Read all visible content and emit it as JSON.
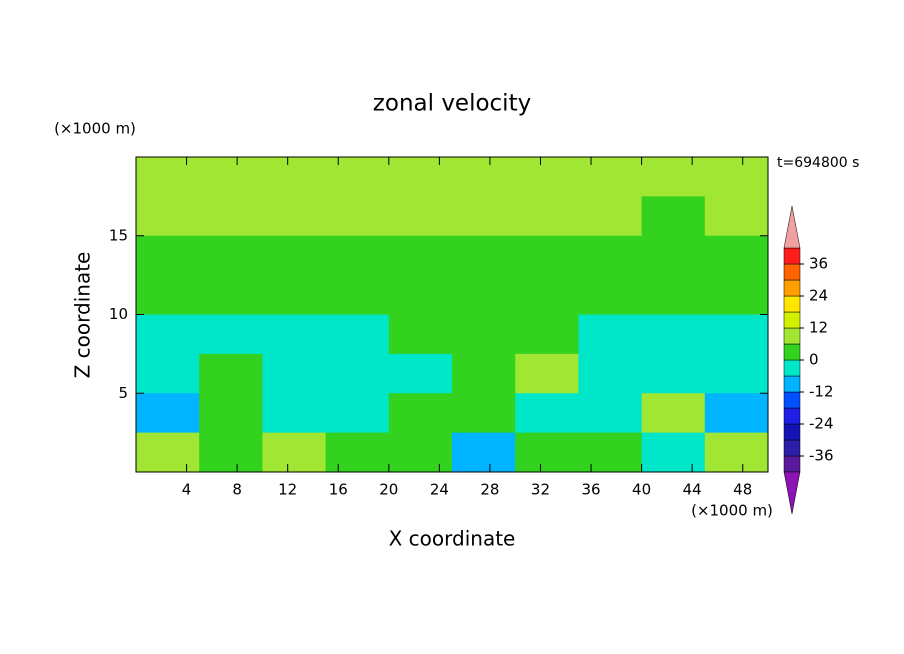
{
  "chart_data": {
    "type": "contour",
    "title": "zonal velocity",
    "x_label": "X coordinate",
    "y_label": "Z coordinate",
    "x_unit": "(×1000 m)",
    "y_unit": "(×1000 m)",
    "annotation": "t=694800 s",
    "xlim": [
      0,
      50
    ],
    "ylim": [
      0,
      20
    ],
    "xticks": [
      4,
      8,
      12,
      16,
      20,
      24,
      28,
      32,
      36,
      40,
      44,
      48
    ],
    "yticks": [
      5,
      10,
      15
    ],
    "x": [
      2.5,
      7.5,
      12.5,
      17.5,
      22.5,
      27.5,
      32.5,
      37.5,
      42.5,
      47.5
    ],
    "z": [
      18.75,
      16.25,
      13.75,
      11.25,
      8.75,
      6.25,
      3.75,
      1.25
    ],
    "values": [
      [
        8,
        9,
        9,
        8,
        8,
        8,
        8,
        9,
        10,
        8
      ],
      [
        7,
        7,
        7,
        6,
        6,
        7,
        7,
        6,
        4,
        7
      ],
      [
        4,
        4,
        3,
        5,
        4,
        3,
        3,
        3,
        4,
        4
      ],
      [
        3,
        2,
        2,
        2,
        3,
        2,
        2,
        3,
        2,
        2
      ],
      [
        -2,
        -3,
        -3,
        -2,
        2,
        1,
        2,
        -2,
        -3,
        -4
      ],
      [
        -5,
        2,
        -2,
        -3,
        -2,
        3,
        7,
        -3,
        -3,
        -4
      ],
      [
        -9,
        2,
        -2,
        -4,
        2,
        4,
        -2,
        -3,
        7,
        -9
      ],
      [
        8,
        3,
        6,
        2,
        1,
        -10,
        2,
        2,
        -3,
        9
      ]
    ],
    "colorbar": {
      "levels": [
        -42,
        -36,
        -30,
        -24,
        -18,
        -12,
        -6,
        0,
        6,
        12,
        18,
        24,
        30,
        36,
        42
      ],
      "colors": [
        "#5a189a",
        "#2d1ea8",
        "#1414b4",
        "#1e1ee6",
        "#0050ff",
        "#00b4ff",
        "#00e6c8",
        "#32d21e",
        "#a0e632",
        "#d2f000",
        "#ffe600",
        "#ffa000",
        "#ff6400",
        "#ff1e1e"
      ],
      "under_color": "#8c14b4",
      "over_color": "#f0a0a0",
      "ticks": [
        -36,
        -24,
        -12,
        0,
        12,
        24,
        36
      ]
    }
  }
}
